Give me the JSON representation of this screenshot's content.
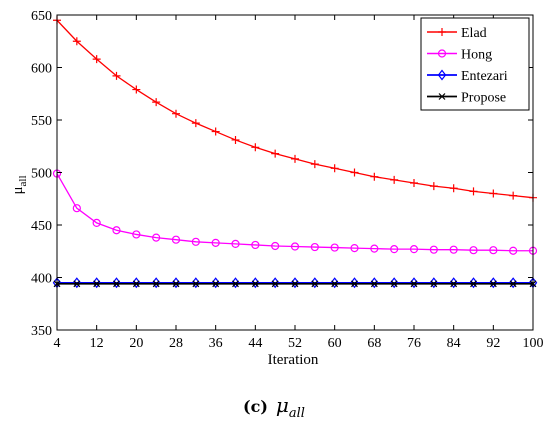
{
  "chart_data": {
    "type": "line",
    "xlabel": "Iteration",
    "ylabel_main": "μ",
    "ylabel_sub": "all",
    "xlim": [
      4,
      100
    ],
    "ylim": [
      350,
      650
    ],
    "xticks": [
      4,
      12,
      20,
      28,
      36,
      44,
      52,
      60,
      68,
      76,
      84,
      92,
      100
    ],
    "yticks": [
      350,
      400,
      450,
      500,
      550,
      600,
      650
    ],
    "legend_position": "top-right",
    "grid": false,
    "x": [
      4,
      8,
      12,
      16,
      20,
      24,
      28,
      32,
      36,
      40,
      44,
      48,
      52,
      56,
      60,
      64,
      68,
      72,
      76,
      80,
      84,
      88,
      92,
      96,
      100
    ],
    "series": [
      {
        "name": "Elad",
        "color": "#ff0000",
        "marker": "plus",
        "values": [
          645,
          625,
          608,
          592,
          579,
          567,
          556,
          547,
          539,
          531,
          524,
          518,
          513,
          508,
          504,
          500,
          496,
          493,
          490,
          487,
          485,
          482,
          480,
          478,
          476
        ]
      },
      {
        "name": "Hong",
        "color": "#ff00ff",
        "marker": "circle",
        "values": [
          499,
          466,
          452,
          445,
          441,
          438,
          436,
          434,
          433,
          432,
          431,
          430,
          429.5,
          429,
          428.5,
          428,
          427.5,
          427,
          427,
          426.5,
          426.5,
          426,
          426,
          425.5,
          425.5
        ]
      },
      {
        "name": "Entezari",
        "color": "#0000ff",
        "marker": "diamond",
        "values": [
          395,
          395,
          395,
          395,
          395,
          395,
          395,
          395,
          395,
          395,
          395,
          395,
          395,
          395,
          395,
          395,
          395,
          395,
          395,
          395,
          395,
          395,
          395,
          395,
          395
        ]
      },
      {
        "name": "Propose",
        "color": "#000000",
        "marker": "x",
        "values": [
          394,
          394,
          394,
          394,
          394,
          394,
          394,
          394,
          394,
          394,
          394,
          394,
          394,
          394,
          394,
          394,
          394,
          394,
          394,
          394,
          394,
          394,
          394,
          394,
          394
        ]
      }
    ]
  },
  "caption": {
    "label": "(c)",
    "symbol": "μ",
    "subscript": "all"
  }
}
